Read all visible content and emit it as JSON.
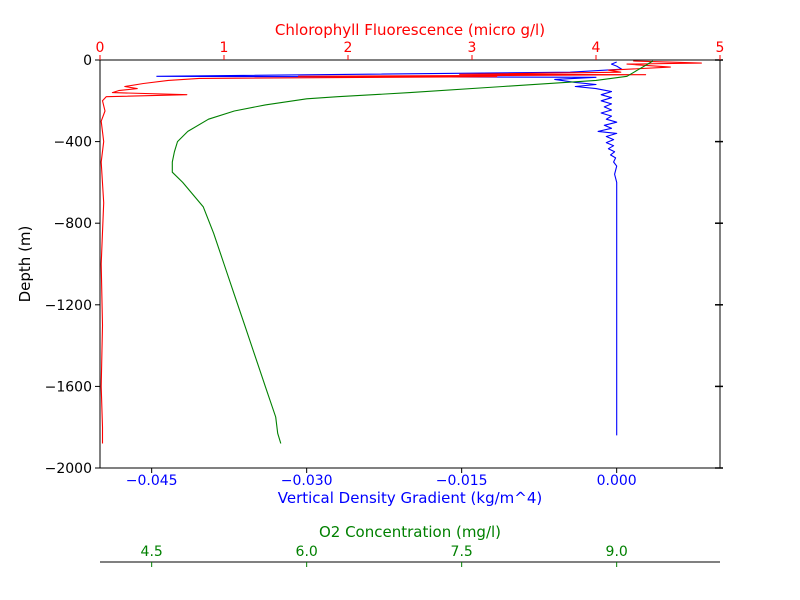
{
  "colors": {
    "density": "#0000ff",
    "chlorophyll": "#ff0000",
    "oxygen": "#008000",
    "axis": "#000000"
  },
  "chart_data": {
    "type": "line",
    "ylabel": "Depth (m)",
    "ylim": [
      -2000,
      0
    ],
    "yticks": [
      0,
      -400,
      -800,
      -1200,
      -1600,
      -2000
    ],
    "ytick_labels": [
      "0",
      "−400",
      "−800",
      "−1200",
      "−1600",
      "−2000"
    ],
    "axes": {
      "density": {
        "label": "Vertical Density Gradient (kg/m^4)",
        "position": "bottom",
        "lim": [
          -0.05,
          0.01
        ],
        "ticks": [
          -0.045,
          -0.03,
          -0.015,
          0.0
        ],
        "tick_labels": [
          "−0.045",
          "−0.030",
          "−0.015",
          "0.000"
        ]
      },
      "chlorophyll": {
        "label": "Chlorophyll Fluorescence (micro g/l)",
        "position": "top",
        "lim": [
          0,
          5
        ],
        "ticks": [
          0,
          1,
          2,
          3,
          4,
          5
        ],
        "tick_labels": [
          "0",
          "1",
          "2",
          "3",
          "4",
          "5"
        ]
      },
      "oxygen": {
        "label": "O2 Concentration (mg/l)",
        "position": "bottom-offset",
        "lim": [
          4.0,
          10.0
        ],
        "ticks": [
          4.5,
          6.0,
          7.5,
          9.0
        ],
        "tick_labels": [
          "4.5",
          "6.0",
          "7.5",
          "9.0"
        ]
      }
    },
    "series": [
      {
        "axis": "density",
        "color": "#0000ff",
        "points": [
          [
            0.0,
            -10
          ],
          [
            -0.0005,
            -20
          ],
          [
            0.0,
            -30
          ],
          [
            0.0005,
            -45
          ],
          [
            -0.0045,
            -60
          ],
          [
            -0.0445,
            -80
          ],
          [
            -0.002,
            -85
          ],
          [
            -0.006,
            -95
          ],
          [
            -0.004,
            -110
          ],
          [
            -0.002,
            -120
          ],
          [
            -0.004,
            -130
          ],
          [
            -0.002,
            -140
          ],
          [
            -0.0005,
            -155
          ],
          [
            -0.0015,
            -170
          ],
          [
            -0.0005,
            -185
          ],
          [
            -0.0015,
            -200
          ],
          [
            -0.0005,
            -215
          ],
          [
            -0.0012,
            -230
          ],
          [
            -0.0005,
            -245
          ],
          [
            -0.0015,
            -260
          ],
          [
            -0.0005,
            -275
          ],
          [
            -0.001,
            -290
          ],
          [
            0.0,
            -305
          ],
          [
            -0.0012,
            -320
          ],
          [
            -0.0005,
            -335
          ],
          [
            -0.0018,
            -350
          ],
          [
            0.0,
            -360
          ],
          [
            -0.001,
            -375
          ],
          [
            -0.0003,
            -390
          ],
          [
            -0.001,
            -405
          ],
          [
            -0.0003,
            -420
          ],
          [
            -0.0008,
            -435
          ],
          [
            -0.0002,
            -450
          ],
          [
            -0.0006,
            -465
          ],
          [
            -0.0001,
            -480
          ],
          [
            -0.0003,
            -500
          ],
          [
            0.0,
            -520
          ],
          [
            -0.0002,
            -560
          ],
          [
            0.0,
            -600
          ],
          [
            0.0,
            -800
          ],
          [
            0.0,
            -1000
          ],
          [
            0.0,
            -1200
          ],
          [
            0.0,
            -1400
          ],
          [
            0.0,
            -1600
          ],
          [
            0.0,
            -1800
          ],
          [
            0.0,
            -1840
          ]
        ]
      },
      {
        "axis": "chlorophyll",
        "color": "#ff0000",
        "points": [
          [
            4.3,
            -5
          ],
          [
            4.85,
            -15
          ],
          [
            4.25,
            -20
          ],
          [
            4.6,
            -35
          ],
          [
            4.1,
            -50
          ],
          [
            4.2,
            -60
          ],
          [
            2.9,
            -70
          ],
          [
            4.4,
            -72
          ],
          [
            3.5,
            -75
          ],
          [
            1.6,
            -80
          ],
          [
            3.2,
            -82
          ],
          [
            0.8,
            -90
          ],
          [
            0.55,
            -100
          ],
          [
            0.35,
            -115
          ],
          [
            0.2,
            -130
          ],
          [
            0.3,
            -140
          ],
          [
            0.15,
            -150
          ],
          [
            0.1,
            -160
          ],
          [
            0.7,
            -170
          ],
          [
            0.05,
            -180
          ],
          [
            0.02,
            -200
          ],
          [
            0.04,
            -250
          ],
          [
            0.01,
            -300
          ],
          [
            0.03,
            -400
          ],
          [
            0.01,
            -500
          ],
          [
            0.03,
            -700
          ],
          [
            0.01,
            -1000
          ],
          [
            0.02,
            -1300
          ],
          [
            0.01,
            -1600
          ],
          [
            0.02,
            -1800
          ],
          [
            0.02,
            -1880
          ]
        ]
      },
      {
        "axis": "oxygen",
        "color": "#008000",
        "points": [
          [
            9.35,
            -5
          ],
          [
            9.3,
            -20
          ],
          [
            9.2,
            -50
          ],
          [
            9.1,
            -80
          ],
          [
            8.8,
            -100
          ],
          [
            7.9,
            -130
          ],
          [
            7.0,
            -160
          ],
          [
            6.3,
            -180
          ],
          [
            6.0,
            -190
          ],
          [
            5.6,
            -220
          ],
          [
            5.3,
            -250
          ],
          [
            5.05,
            -290
          ],
          [
            4.85,
            -350
          ],
          [
            4.75,
            -400
          ],
          [
            4.72,
            -450
          ],
          [
            4.7,
            -500
          ],
          [
            4.7,
            -550
          ],
          [
            4.8,
            -600
          ],
          [
            4.9,
            -660
          ],
          [
            5.0,
            -720
          ],
          [
            5.1,
            -850
          ],
          [
            5.2,
            -1000
          ],
          [
            5.3,
            -1150
          ],
          [
            5.4,
            -1300
          ],
          [
            5.5,
            -1450
          ],
          [
            5.6,
            -1600
          ],
          [
            5.7,
            -1750
          ],
          [
            5.72,
            -1830
          ],
          [
            5.75,
            -1880
          ]
        ]
      }
    ]
  }
}
